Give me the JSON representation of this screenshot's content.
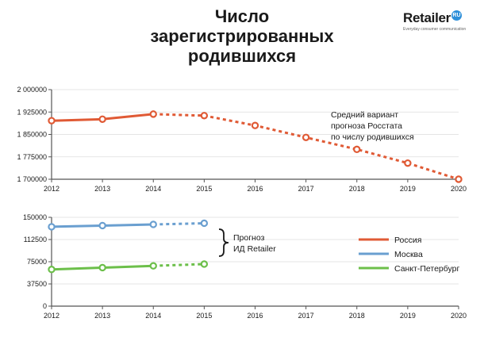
{
  "title_lines": [
    "Число",
    "зарегистрированных",
    "родившихся"
  ],
  "logo": {
    "brand": "Retailer",
    "badge": "RU",
    "tagline": "Everyday consumer communication"
  },
  "colors": {
    "russia": "#e05a35",
    "moscow": "#6a9fd0",
    "spb": "#6cbf4a",
    "axis": "#555555",
    "grid": "#dddddd"
  },
  "chart_data": [
    {
      "type": "line",
      "title": "",
      "x": [
        2012,
        2013,
        2014,
        2015,
        2016,
        2017,
        2018,
        2019,
        2020
      ],
      "xticklabels": [
        "2012",
        "2013",
        "2014",
        "2015",
        "2016",
        "2017",
        "2018",
        "2019",
        "2020"
      ],
      "ylim": [
        1700000,
        2000000
      ],
      "yticks": [
        1700000,
        1775000,
        1850000,
        1925000,
        2000000
      ],
      "yticklabels": [
        "1 700000",
        "1 775000",
        "1 850000",
        "1 925000",
        "2 000000"
      ],
      "series": [
        {
          "name": "Россия",
          "color": "#e05a35",
          "x": [
            2012,
            2013,
            2014,
            2015,
            2016,
            2017,
            2018,
            2019,
            2020
          ],
          "values": [
            1896000,
            1901000,
            1918000,
            1913000,
            1880000,
            1840000,
            1800000,
            1754000,
            1700000
          ],
          "dashed_from": 2014
        }
      ],
      "annotation": [
        "Средний вариант",
        "прогноза Росстата",
        "по числу родившихся"
      ]
    },
    {
      "type": "line",
      "title": "",
      "x": [
        2012,
        2013,
        2014,
        2015,
        2016,
        2017,
        2018,
        2019,
        2020
      ],
      "xticklabels": [
        "2012",
        "2013",
        "2014",
        "2015",
        "2016",
        "2017",
        "2018",
        "2019",
        "2020"
      ],
      "ylim": [
        0,
        150000
      ],
      "yticks": [
        0,
        37500,
        75000,
        112500,
        150000
      ],
      "yticklabels": [
        "0",
        "37500",
        "75000",
        "112500",
        "150000"
      ],
      "series": [
        {
          "name": "Москва",
          "color": "#6a9fd0",
          "x": [
            2012,
            2013,
            2014,
            2015
          ],
          "values": [
            134000,
            136000,
            138000,
            140000
          ],
          "dashed_from": 2014
        },
        {
          "name": "Санкт-Петербург",
          "color": "#6cbf4a",
          "x": [
            2012,
            2013,
            2014,
            2015
          ],
          "values": [
            62000,
            65000,
            68000,
            71000
          ],
          "dashed_from": 2014
        }
      ],
      "annotation": [
        "Прогноз",
        "ИД Retailer"
      ],
      "legend": {
        "placement": "right",
        "entries": [
          "Россия",
          "Москва",
          "Санкт-Петербург"
        ]
      }
    }
  ]
}
